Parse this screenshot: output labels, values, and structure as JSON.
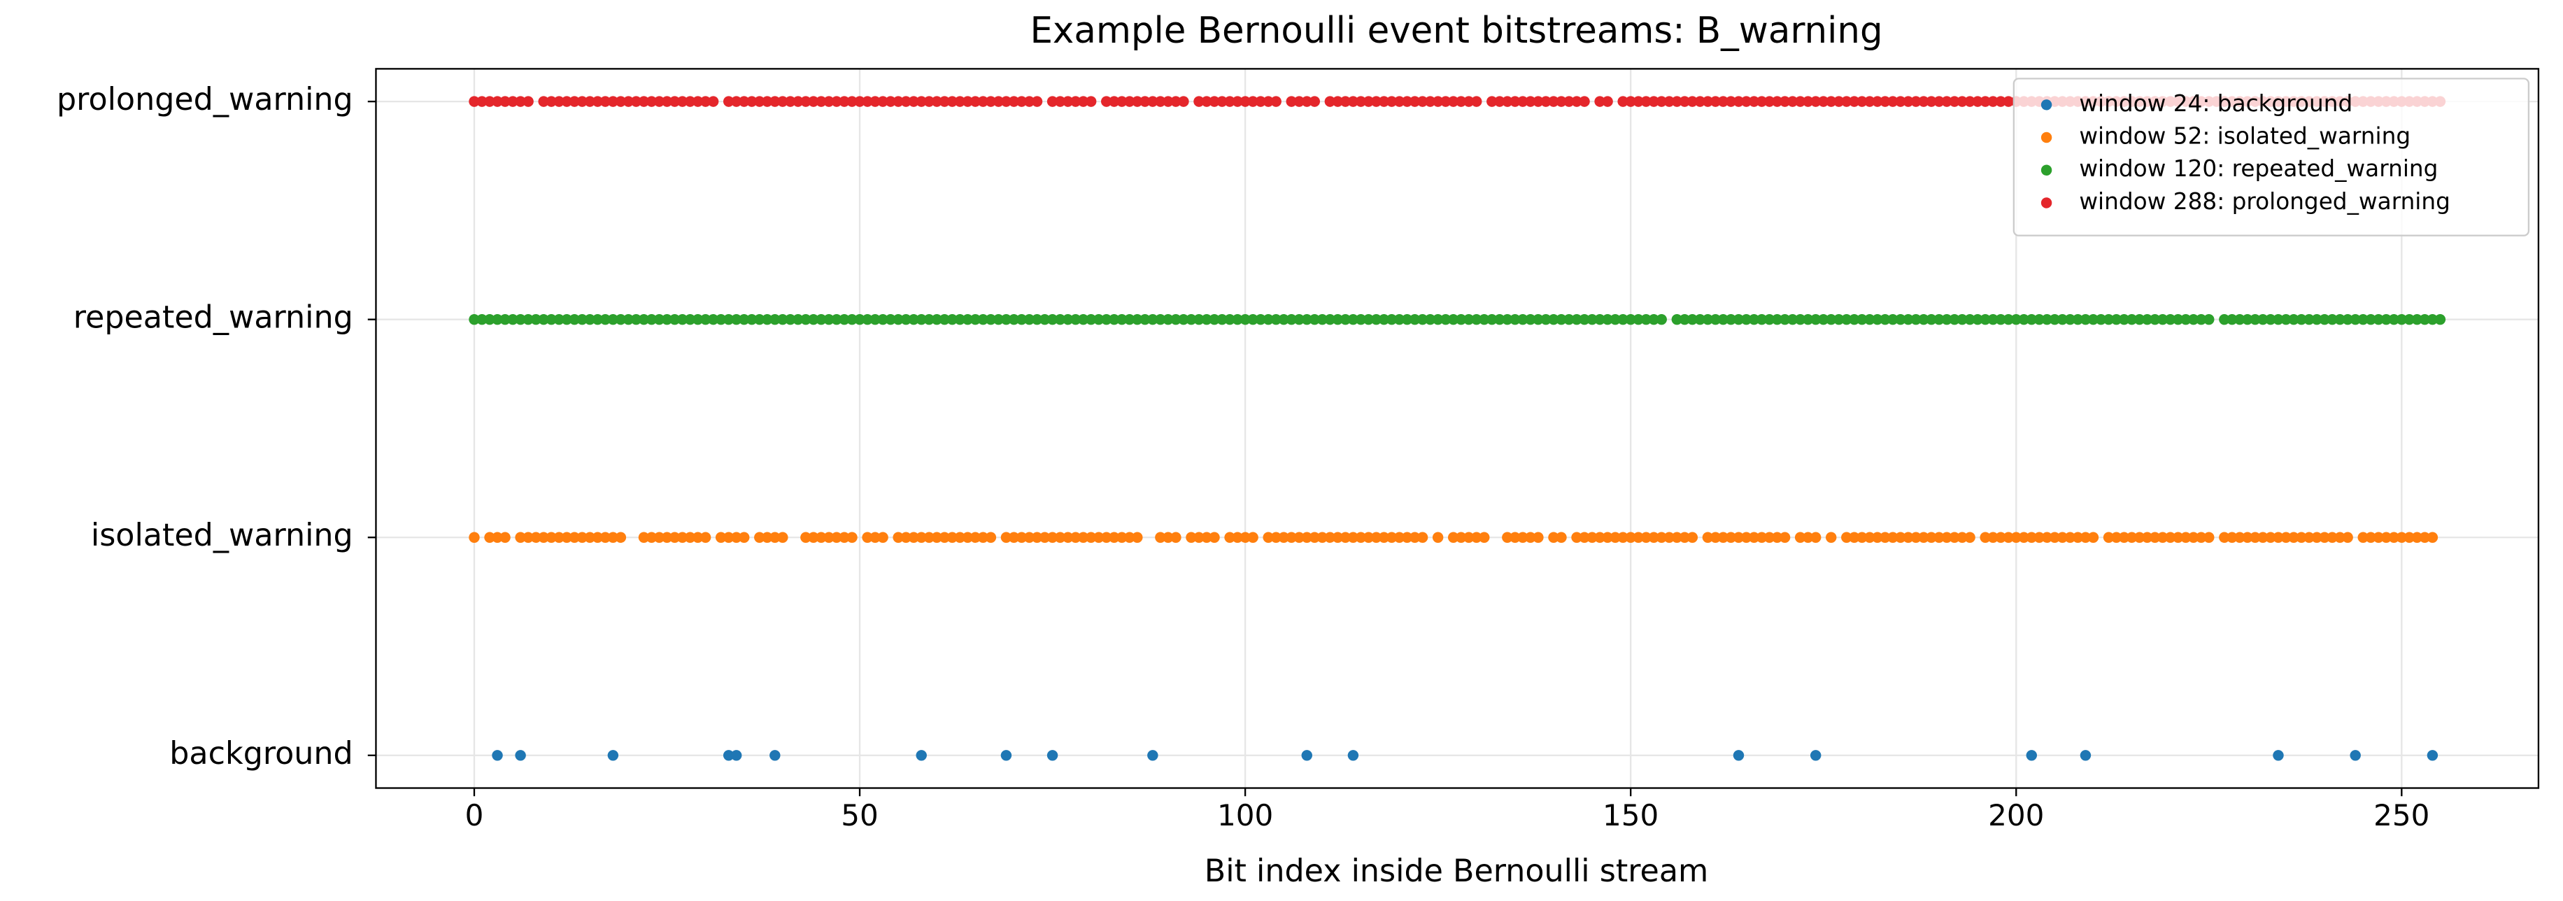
{
  "chart_data": {
    "type": "scatter",
    "title": "Example Bernoulli event bitstreams: B_warning",
    "x_label": "Bit index inside Bernoulli stream",
    "xlim": [
      -12.75,
      267.75
    ],
    "xticks": [
      0,
      50,
      100,
      150,
      200,
      250
    ],
    "ylim": [
      -0.15,
      3.15
    ],
    "yticks": [
      {
        "value": 0,
        "label": "background"
      },
      {
        "value": 1,
        "label": "isolated_warning"
      },
      {
        "value": 2,
        "label": "repeated_warning"
      },
      {
        "value": 3,
        "label": "prolonged_warning"
      }
    ],
    "grid": true,
    "legend": "upper right",
    "series": [
      {
        "name": "window 24: background",
        "color": "#1f77b4",
        "y": 0,
        "x": [
          3,
          6,
          18,
          33,
          34,
          39,
          58,
          69,
          75,
          88,
          108,
          114,
          164,
          174,
          202,
          209,
          234,
          244,
          254
        ]
      },
      {
        "name": "window 52: isolated_warning",
        "color": "#ff7f0e",
        "y": 1,
        "x": [
          0,
          2,
          3,
          4,
          6,
          7,
          8,
          9,
          10,
          11,
          12,
          13,
          14,
          15,
          16,
          17,
          18,
          19,
          22,
          23,
          24,
          25,
          26,
          27,
          28,
          29,
          30,
          32,
          33,
          34,
          35,
          37,
          38,
          39,
          40,
          43,
          44,
          45,
          46,
          47,
          48,
          49,
          51,
          52,
          53,
          55,
          56,
          57,
          58,
          59,
          60,
          61,
          62,
          63,
          64,
          65,
          66,
          67,
          69,
          70,
          71,
          72,
          73,
          74,
          75,
          76,
          77,
          78,
          79,
          80,
          81,
          82,
          83,
          84,
          85,
          86,
          89,
          90,
          91,
          93,
          94,
          95,
          96,
          98,
          99,
          100,
          101,
          103,
          104,
          105,
          106,
          107,
          108,
          109,
          110,
          111,
          112,
          113,
          114,
          115,
          116,
          117,
          118,
          119,
          120,
          121,
          122,
          123,
          125,
          127,
          128,
          129,
          130,
          131,
          134,
          135,
          136,
          137,
          138,
          140,
          141,
          143,
          144,
          145,
          146,
          147,
          148,
          149,
          150,
          151,
          152,
          153,
          154,
          155,
          156,
          157,
          158,
          160,
          161,
          162,
          163,
          164,
          165,
          166,
          167,
          168,
          169,
          170,
          172,
          173,
          174,
          176,
          178,
          179,
          180,
          181,
          182,
          183,
          184,
          185,
          186,
          187,
          188,
          189,
          190,
          191,
          192,
          193,
          194,
          196,
          197,
          198,
          199,
          200,
          201,
          202,
          203,
          204,
          205,
          206,
          207,
          208,
          209,
          210,
          212,
          213,
          214,
          215,
          216,
          217,
          218,
          219,
          220,
          221,
          222,
          223,
          224,
          225,
          227,
          228,
          229,
          230,
          231,
          232,
          233,
          234,
          235,
          236,
          237,
          238,
          239,
          240,
          241,
          242,
          243,
          245,
          246,
          247,
          248,
          249,
          250,
          251,
          252,
          253,
          254
        ]
      },
      {
        "name": "window 120: repeated_warning",
        "color": "#2ca02c",
        "y": 2,
        "x": [
          0,
          1,
          2,
          3,
          4,
          5,
          6,
          7,
          8,
          9,
          10,
          11,
          12,
          13,
          14,
          15,
          16,
          17,
          18,
          19,
          20,
          21,
          22,
          23,
          24,
          25,
          26,
          27,
          28,
          29,
          30,
          31,
          32,
          33,
          34,
          35,
          36,
          37,
          38,
          39,
          40,
          41,
          42,
          43,
          44,
          45,
          46,
          47,
          48,
          49,
          50,
          51,
          52,
          53,
          54,
          55,
          56,
          57,
          58,
          59,
          60,
          61,
          62,
          63,
          64,
          65,
          66,
          67,
          68,
          69,
          70,
          71,
          72,
          73,
          74,
          75,
          76,
          77,
          78,
          79,
          80,
          81,
          82,
          83,
          84,
          85,
          86,
          87,
          88,
          89,
          90,
          91,
          92,
          93,
          94,
          95,
          96,
          97,
          98,
          99,
          100,
          101,
          102,
          103,
          104,
          105,
          106,
          107,
          108,
          109,
          110,
          111,
          112,
          113,
          114,
          115,
          116,
          117,
          118,
          119,
          120,
          121,
          122,
          123,
          124,
          125,
          126,
          127,
          128,
          129,
          130,
          131,
          132,
          133,
          134,
          135,
          136,
          137,
          138,
          139,
          140,
          141,
          142,
          143,
          144,
          145,
          146,
          147,
          148,
          149,
          150,
          151,
          152,
          153,
          154,
          156,
          157,
          158,
          159,
          160,
          161,
          162,
          163,
          164,
          165,
          166,
          167,
          168,
          169,
          170,
          171,
          172,
          173,
          174,
          175,
          176,
          177,
          178,
          179,
          180,
          181,
          182,
          183,
          184,
          185,
          186,
          187,
          188,
          189,
          190,
          191,
          192,
          193,
          194,
          195,
          196,
          197,
          198,
          199,
          200,
          201,
          202,
          203,
          204,
          205,
          206,
          207,
          208,
          209,
          210,
          211,
          212,
          213,
          214,
          215,
          216,
          217,
          218,
          219,
          220,
          221,
          222,
          223,
          224,
          225,
          227,
          228,
          229,
          230,
          231,
          232,
          233,
          234,
          235,
          236,
          237,
          238,
          239,
          240,
          241,
          242,
          243,
          244,
          245,
          246,
          247,
          248,
          249,
          250,
          251,
          252,
          253,
          254,
          255
        ]
      },
      {
        "name": "window 288: prolonged_warning",
        "color": "#e4262b",
        "y": 3,
        "x": [
          0,
          1,
          2,
          3,
          4,
          5,
          6,
          7,
          9,
          10,
          11,
          12,
          13,
          14,
          15,
          16,
          17,
          18,
          19,
          20,
          21,
          22,
          23,
          24,
          25,
          26,
          27,
          28,
          29,
          30,
          31,
          33,
          34,
          35,
          36,
          37,
          38,
          39,
          40,
          41,
          42,
          43,
          44,
          45,
          46,
          47,
          48,
          49,
          50,
          51,
          52,
          53,
          54,
          55,
          56,
          57,
          58,
          59,
          60,
          61,
          62,
          63,
          64,
          65,
          66,
          67,
          68,
          69,
          70,
          71,
          72,
          73,
          75,
          76,
          77,
          78,
          79,
          80,
          82,
          83,
          84,
          85,
          86,
          87,
          88,
          89,
          90,
          91,
          92,
          94,
          95,
          96,
          97,
          98,
          99,
          100,
          101,
          102,
          103,
          104,
          106,
          107,
          108,
          109,
          111,
          112,
          113,
          114,
          115,
          116,
          117,
          118,
          119,
          120,
          121,
          122,
          123,
          124,
          125,
          126,
          127,
          128,
          129,
          130,
          132,
          133,
          134,
          135,
          136,
          137,
          138,
          139,
          140,
          141,
          142,
          143,
          144,
          146,
          147,
          149,
          150,
          151,
          152,
          153,
          154,
          155,
          156,
          157,
          158,
          159,
          160,
          161,
          162,
          163,
          164,
          165,
          166,
          167,
          168,
          169,
          170,
          171,
          172,
          173,
          174,
          175,
          176,
          177,
          178,
          179,
          180,
          181,
          182,
          183,
          184,
          185,
          186,
          187,
          188,
          189,
          190,
          191,
          192,
          193,
          194,
          195,
          196,
          197,
          198,
          199,
          200,
          201,
          202,
          203,
          204,
          205,
          206,
          207,
          208,
          209,
          210,
          211,
          212,
          213,
          214,
          215,
          216,
          217,
          218,
          219,
          220,
          221,
          222,
          223,
          224,
          225,
          226,
          227,
          228,
          229,
          230,
          231,
          232,
          233,
          234,
          235,
          236,
          237,
          238,
          239,
          240,
          241,
          242,
          243,
          244,
          245,
          246,
          247,
          248,
          249,
          250,
          251,
          252,
          253,
          254,
          255
        ]
      }
    ]
  }
}
